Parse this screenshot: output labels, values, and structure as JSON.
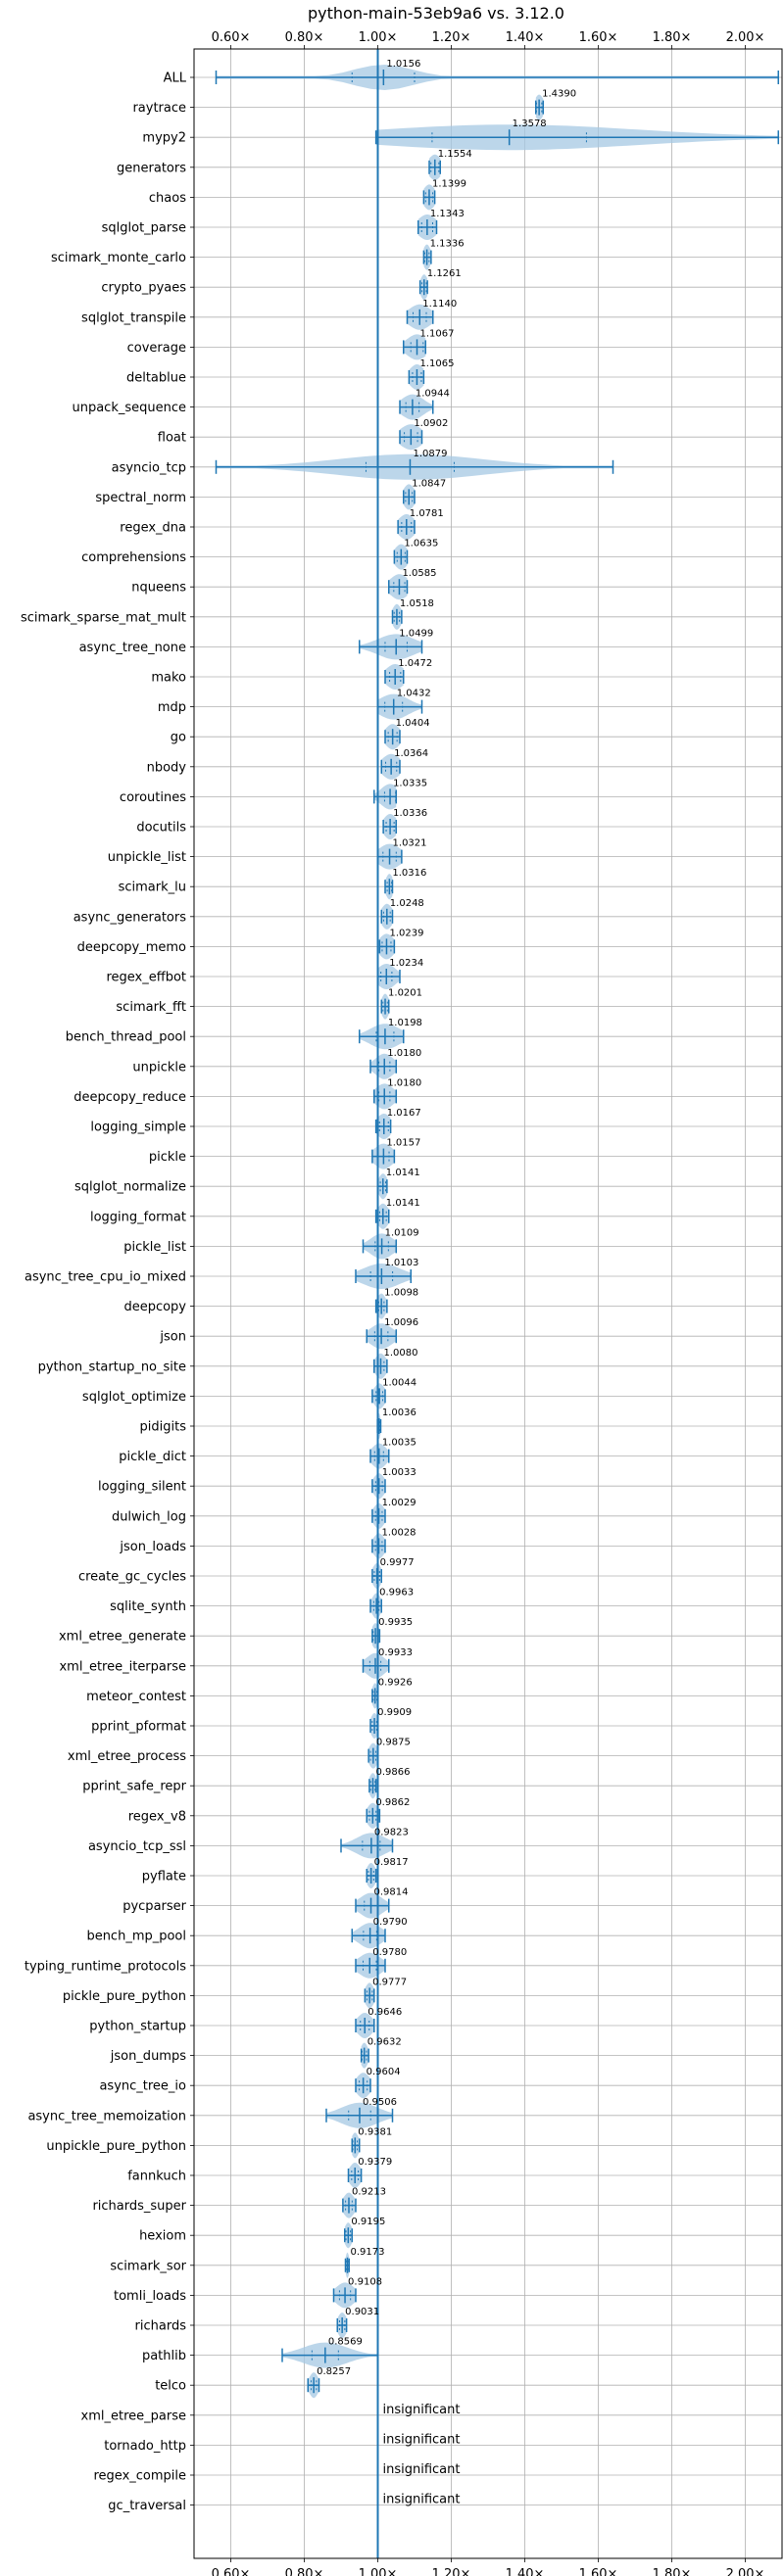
{
  "chart_data": {
    "type": "violin",
    "title": "python-main-53eb9a6 vs. 3.12.0",
    "xlim": [
      0.5,
      2.1
    ],
    "xticks": [
      0.6,
      0.8,
      1.0,
      1.2,
      1.4,
      1.6,
      1.8,
      2.0
    ],
    "xtick_labels": [
      "0.60×",
      "0.80×",
      "1.00×",
      "1.20×",
      "1.40×",
      "1.60×",
      "1.80×",
      "2.00×"
    ],
    "reference_line": 1.0,
    "grid": true,
    "colors": {
      "violin": "#a6c8e3",
      "line": "#1f77b4"
    },
    "insignificant_label": "insignificant",
    "benchmarks": [
      {
        "name": "ALL",
        "value": 1.0156,
        "label": "1.0156",
        "min": 0.56,
        "max": 2.09,
        "q1": 0.93,
        "q3": 1.1,
        "spread": 0.08
      },
      {
        "name": "raytrace",
        "value": 1.439,
        "label": "1.4390",
        "min": 1.43,
        "max": 1.45,
        "spread": 0.012
      },
      {
        "name": "mypy2",
        "value": 1.3578,
        "label": "1.3578",
        "min": 0.995,
        "max": 2.09,
        "spread": 0.35
      },
      {
        "name": "generators",
        "value": 1.1554,
        "label": "1.1554",
        "min": 1.14,
        "max": 1.17,
        "spread": 0.018
      },
      {
        "name": "chaos",
        "value": 1.1399,
        "label": "1.1399",
        "min": 1.125,
        "max": 1.155,
        "spread": 0.016
      },
      {
        "name": "sqlglot_parse",
        "value": 1.1343,
        "label": "1.1343",
        "min": 1.11,
        "max": 1.16,
        "spread": 0.025
      },
      {
        "name": "scimark_monte_carlo",
        "value": 1.1336,
        "label": "1.1336",
        "min": 1.125,
        "max": 1.145,
        "spread": 0.01
      },
      {
        "name": "crypto_pyaes",
        "value": 1.1261,
        "label": "1.1261",
        "min": 1.115,
        "max": 1.135,
        "spread": 0.01
      },
      {
        "name": "sqlglot_transpile",
        "value": 1.114,
        "label": "1.1140",
        "min": 1.08,
        "max": 1.15,
        "spread": 0.03
      },
      {
        "name": "coverage",
        "value": 1.1067,
        "label": "1.1067",
        "min": 1.07,
        "max": 1.13,
        "spread": 0.028
      },
      {
        "name": "deltablue",
        "value": 1.1065,
        "label": "1.1065",
        "min": 1.085,
        "max": 1.125,
        "spread": 0.02
      },
      {
        "name": "unpack_sequence",
        "value": 1.0944,
        "label": "1.0944",
        "min": 1.06,
        "max": 1.15,
        "spread": 0.03
      },
      {
        "name": "float",
        "value": 1.0902,
        "label": "1.0902",
        "min": 1.06,
        "max": 1.12,
        "spread": 0.03
      },
      {
        "name": "asyncio_tcp",
        "value": 1.0879,
        "label": "1.0879",
        "min": 0.56,
        "max": 1.64,
        "spread": 0.2
      },
      {
        "name": "spectral_norm",
        "value": 1.0847,
        "label": "1.0847",
        "min": 1.07,
        "max": 1.1,
        "spread": 0.015
      },
      {
        "name": "regex_dna",
        "value": 1.0781,
        "label": "1.0781",
        "min": 1.055,
        "max": 1.1,
        "spread": 0.022
      },
      {
        "name": "comprehensions",
        "value": 1.0635,
        "label": "1.0635",
        "min": 1.045,
        "max": 1.08,
        "spread": 0.018
      },
      {
        "name": "nqueens",
        "value": 1.0585,
        "label": "1.0585",
        "min": 1.03,
        "max": 1.08,
        "spread": 0.025
      },
      {
        "name": "scimark_sparse_mat_mult",
        "value": 1.0518,
        "label": "1.0518",
        "min": 1.04,
        "max": 1.065,
        "spread": 0.012
      },
      {
        "name": "async_tree_none",
        "value": 1.0499,
        "label": "1.0499",
        "min": 0.95,
        "max": 1.12,
        "spread": 0.05
      },
      {
        "name": "mako",
        "value": 1.0472,
        "label": "1.0472",
        "min": 1.02,
        "max": 1.07,
        "spread": 0.025
      },
      {
        "name": "mdp",
        "value": 1.0432,
        "label": "1.0432",
        "min": 1.0,
        "max": 1.12,
        "spread": 0.04
      },
      {
        "name": "go",
        "value": 1.0404,
        "label": "1.0404",
        "min": 1.02,
        "max": 1.06,
        "spread": 0.02
      },
      {
        "name": "nbody",
        "value": 1.0364,
        "label": "1.0364",
        "min": 1.01,
        "max": 1.06,
        "spread": 0.025
      },
      {
        "name": "coroutines",
        "value": 1.0335,
        "label": "1.0335",
        "min": 0.99,
        "max": 1.05,
        "spread": 0.025
      },
      {
        "name": "docutils",
        "value": 1.0336,
        "label": "1.0336",
        "min": 1.015,
        "max": 1.05,
        "spread": 0.018
      },
      {
        "name": "unpickle_list",
        "value": 1.0321,
        "label": "1.0321",
        "min": 1.0,
        "max": 1.065,
        "spread": 0.03
      },
      {
        "name": "scimark_lu",
        "value": 1.0316,
        "label": "1.0316",
        "min": 1.02,
        "max": 1.04,
        "spread": 0.01
      },
      {
        "name": "async_generators",
        "value": 1.0248,
        "label": "1.0248",
        "min": 1.01,
        "max": 1.04,
        "spread": 0.015
      },
      {
        "name": "deepcopy_memo",
        "value": 1.0239,
        "label": "1.0239",
        "min": 1.005,
        "max": 1.045,
        "spread": 0.02
      },
      {
        "name": "regex_effbot",
        "value": 1.0234,
        "label": "1.0234",
        "min": 1.0,
        "max": 1.06,
        "spread": 0.025
      },
      {
        "name": "scimark_fft",
        "value": 1.0201,
        "label": "1.0201",
        "min": 1.01,
        "max": 1.03,
        "spread": 0.01
      },
      {
        "name": "bench_thread_pool",
        "value": 1.0198,
        "label": "1.0198",
        "min": 0.95,
        "max": 1.07,
        "spread": 0.04
      },
      {
        "name": "unpickle",
        "value": 1.018,
        "label": "1.0180",
        "min": 0.98,
        "max": 1.05,
        "spread": 0.025
      },
      {
        "name": "deepcopy_reduce",
        "value": 1.018,
        "label": "1.0180",
        "min": 0.99,
        "max": 1.05,
        "spread": 0.025
      },
      {
        "name": "logging_simple",
        "value": 1.0167,
        "label": "1.0167",
        "min": 0.995,
        "max": 1.035,
        "spread": 0.02
      },
      {
        "name": "pickle",
        "value": 1.0157,
        "label": "1.0157",
        "min": 0.985,
        "max": 1.045,
        "spread": 0.025
      },
      {
        "name": "sqlglot_normalize",
        "value": 1.0141,
        "label": "1.0141",
        "min": 1.0,
        "max": 1.025,
        "spread": 0.012
      },
      {
        "name": "logging_format",
        "value": 1.0141,
        "label": "1.0141",
        "min": 0.995,
        "max": 1.03,
        "spread": 0.015
      },
      {
        "name": "pickle_list",
        "value": 1.0109,
        "label": "1.0109",
        "min": 0.96,
        "max": 1.05,
        "spread": 0.03
      },
      {
        "name": "async_tree_cpu_io_mixed",
        "value": 1.0103,
        "label": "1.0103",
        "min": 0.94,
        "max": 1.09,
        "spread": 0.05
      },
      {
        "name": "deepcopy",
        "value": 1.0098,
        "label": "1.0098",
        "min": 0.995,
        "max": 1.025,
        "spread": 0.012
      },
      {
        "name": "json",
        "value": 1.0096,
        "label": "1.0096",
        "min": 0.97,
        "max": 1.05,
        "spread": 0.03
      },
      {
        "name": "python_startup_no_site",
        "value": 1.008,
        "label": "1.0080",
        "min": 0.99,
        "max": 1.025,
        "spread": 0.015
      },
      {
        "name": "sqlglot_optimize",
        "value": 1.0044,
        "label": "1.0044",
        "min": 0.985,
        "max": 1.02,
        "spread": 0.015
      },
      {
        "name": "pidigits",
        "value": 1.0036,
        "label": "1.0036",
        "min": 0.999,
        "max": 1.008,
        "spread": 0.004
      },
      {
        "name": "pickle_dict",
        "value": 1.0035,
        "label": "1.0035",
        "min": 0.98,
        "max": 1.03,
        "spread": 0.02
      },
      {
        "name": "logging_silent",
        "value": 1.0033,
        "label": "1.0033",
        "min": 0.985,
        "max": 1.02,
        "spread": 0.015
      },
      {
        "name": "dulwich_log",
        "value": 1.0029,
        "label": "1.0029",
        "min": 0.985,
        "max": 1.02,
        "spread": 0.015
      },
      {
        "name": "json_loads",
        "value": 1.0028,
        "label": "1.0028",
        "min": 0.985,
        "max": 1.02,
        "spread": 0.015
      },
      {
        "name": "create_gc_cycles",
        "value": 0.9977,
        "label": "0.9977",
        "min": 0.985,
        "max": 1.01,
        "spread": 0.012
      },
      {
        "name": "sqlite_synth",
        "value": 0.9963,
        "label": "0.9963",
        "min": 0.98,
        "max": 1.01,
        "spread": 0.012
      },
      {
        "name": "xml_etree_generate",
        "value": 0.9935,
        "label": "0.9935",
        "min": 0.985,
        "max": 1.005,
        "spread": 0.01
      },
      {
        "name": "xml_etree_iterparse",
        "value": 0.9933,
        "label": "0.9933",
        "min": 0.96,
        "max": 1.03,
        "spread": 0.025
      },
      {
        "name": "meteor_contest",
        "value": 0.9926,
        "label": "0.9926",
        "min": 0.985,
        "max": 1.0,
        "spread": 0.008
      },
      {
        "name": "pprint_pformat",
        "value": 0.9909,
        "label": "0.9909",
        "min": 0.98,
        "max": 1.0,
        "spread": 0.01
      },
      {
        "name": "xml_etree_process",
        "value": 0.9875,
        "label": "0.9875",
        "min": 0.975,
        "max": 1.0,
        "spread": 0.012
      },
      {
        "name": "pprint_safe_repr",
        "value": 0.9866,
        "label": "0.9866",
        "min": 0.977,
        "max": 0.995,
        "spread": 0.01
      },
      {
        "name": "regex_v8",
        "value": 0.9862,
        "label": "0.9862",
        "min": 0.97,
        "max": 1.005,
        "spread": 0.015
      },
      {
        "name": "asyncio_tcp_ssl",
        "value": 0.9823,
        "label": "0.9823",
        "min": 0.9,
        "max": 1.04,
        "spread": 0.04
      },
      {
        "name": "pyflate",
        "value": 0.9817,
        "label": "0.9817",
        "min": 0.97,
        "max": 0.995,
        "spread": 0.012
      },
      {
        "name": "pycparser",
        "value": 0.9814,
        "label": "0.9814",
        "min": 0.94,
        "max": 1.03,
        "spread": 0.03
      },
      {
        "name": "bench_mp_pool",
        "value": 0.979,
        "label": "0.9790",
        "min": 0.93,
        "max": 1.02,
        "spread": 0.03
      },
      {
        "name": "typing_runtime_protocols",
        "value": 0.978,
        "label": "0.9780",
        "min": 0.94,
        "max": 1.02,
        "spread": 0.03
      },
      {
        "name": "pickle_pure_python",
        "value": 0.9777,
        "label": "0.9777",
        "min": 0.965,
        "max": 0.99,
        "spread": 0.012
      },
      {
        "name": "python_startup",
        "value": 0.9646,
        "label": "0.9646",
        "min": 0.94,
        "max": 0.99,
        "spread": 0.02
      },
      {
        "name": "json_dumps",
        "value": 0.9632,
        "label": "0.9632",
        "min": 0.955,
        "max": 0.975,
        "spread": 0.01
      },
      {
        "name": "async_tree_io",
        "value": 0.9604,
        "label": "0.9604",
        "min": 0.94,
        "max": 0.98,
        "spread": 0.018
      },
      {
        "name": "async_tree_memoization",
        "value": 0.9506,
        "label": "0.9506",
        "min": 0.86,
        "max": 1.04,
        "spread": 0.05
      },
      {
        "name": "unpickle_pure_python",
        "value": 0.9381,
        "label": "0.9381",
        "min": 0.93,
        "max": 0.95,
        "spread": 0.01
      },
      {
        "name": "fannkuch",
        "value": 0.9379,
        "label": "0.9379",
        "min": 0.92,
        "max": 0.955,
        "spread": 0.015
      },
      {
        "name": "richards_super",
        "value": 0.9213,
        "label": "0.9213",
        "min": 0.905,
        "max": 0.94,
        "spread": 0.015
      },
      {
        "name": "hexiom",
        "value": 0.9195,
        "label": "0.9195",
        "min": 0.91,
        "max": 0.93,
        "spread": 0.01
      },
      {
        "name": "scimark_sor",
        "value": 0.9173,
        "label": "0.9173",
        "min": 0.912,
        "max": 0.922,
        "spread": 0.005
      },
      {
        "name": "tomli_loads",
        "value": 0.9108,
        "label": "0.9108",
        "min": 0.88,
        "max": 0.94,
        "spread": 0.025
      },
      {
        "name": "richards",
        "value": 0.9031,
        "label": "0.9031",
        "min": 0.89,
        "max": 0.915,
        "spread": 0.012
      },
      {
        "name": "pathlib",
        "value": 0.8569,
        "label": "0.8569",
        "min": 0.74,
        "max": 1.0,
        "spread": 0.06
      },
      {
        "name": "telco",
        "value": 0.8257,
        "label": "0.8257",
        "min": 0.81,
        "max": 0.84,
        "spread": 0.012
      },
      {
        "name": "xml_etree_parse",
        "insignificant": true
      },
      {
        "name": "tornado_http",
        "insignificant": true
      },
      {
        "name": "regex_compile",
        "insignificant": true
      },
      {
        "name": "gc_traversal",
        "insignificant": true
      }
    ]
  }
}
